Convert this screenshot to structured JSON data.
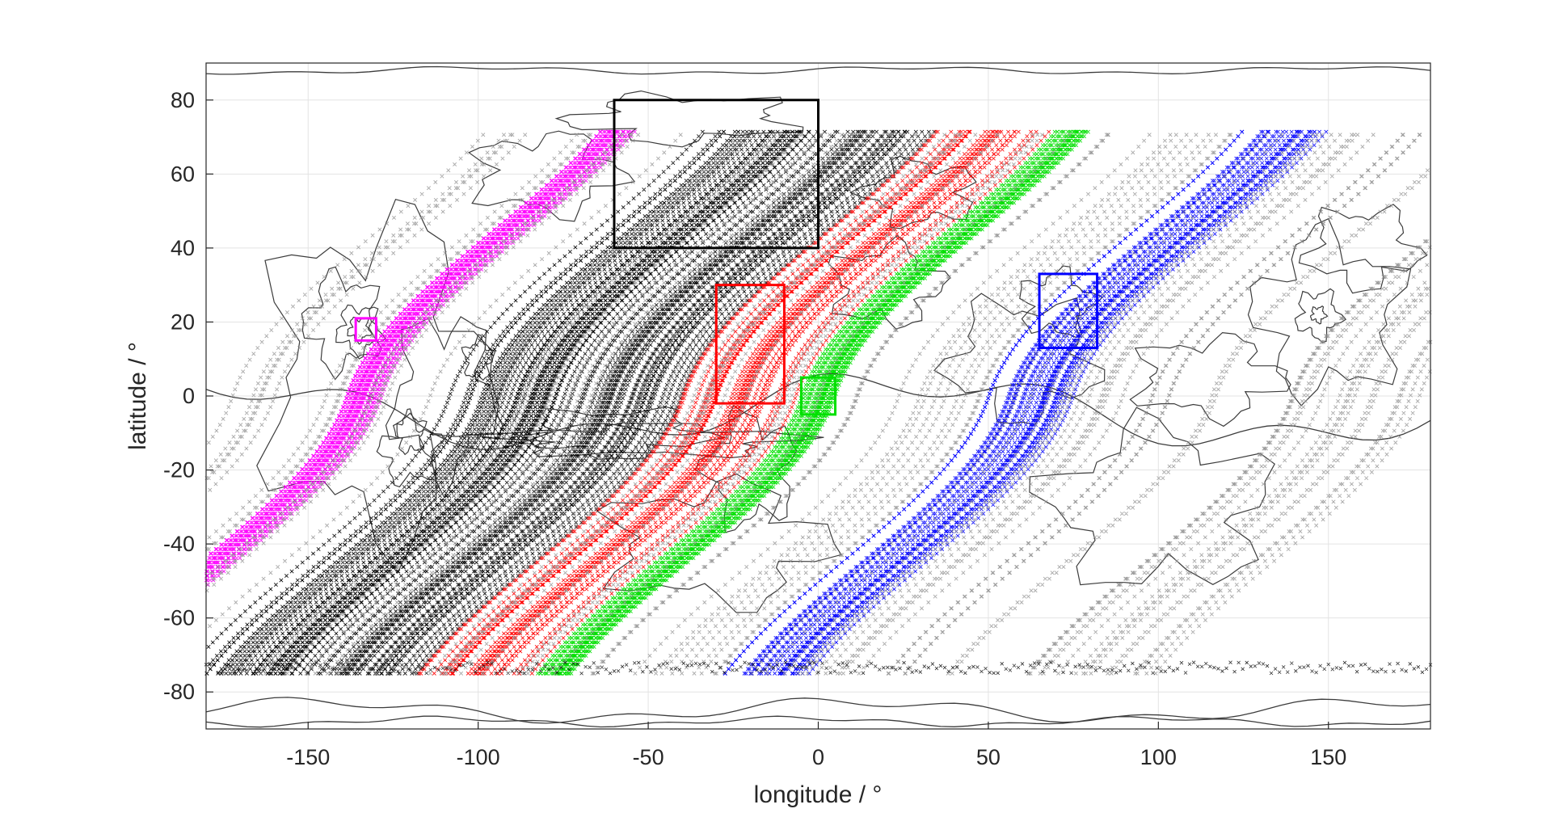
{
  "chart_data": {
    "type": "scatter",
    "title": "",
    "xlabel": "longitude / °",
    "ylabel": "latitude / °",
    "xlim": [
      -180,
      180
    ],
    "ylim": [
      -90,
      90
    ],
    "grid": true,
    "x_ticks": [
      -150,
      -100,
      -50,
      0,
      50,
      100,
      150
    ],
    "y_ticks": [
      80,
      60,
      40,
      20,
      0,
      -20,
      -40,
      -60,
      -80
    ],
    "colors": {
      "gray": "#8c8c8c",
      "black": "#000000",
      "red": "#ff0000",
      "green": "#00e000",
      "blue": "#0000ff",
      "magenta": "#ff00ff",
      "contour": "#3c3c3c"
    },
    "regions": [
      {
        "color": "black",
        "lon": [
          -60,
          0
        ],
        "lat": [
          40,
          80
        ]
      },
      {
        "color": "red",
        "lon": [
          -30,
          -10
        ],
        "lat": [
          -2,
          30
        ]
      },
      {
        "color": "green",
        "lon": [
          -5,
          5
        ],
        "lat": [
          -5,
          5
        ]
      },
      {
        "color": "blue",
        "lon": [
          65,
          82
        ],
        "lat": [
          13,
          33
        ]
      },
      {
        "color": "magenta",
        "lon": [
          -136,
          -130
        ],
        "lat": [
          15,
          21
        ]
      }
    ],
    "series": [
      {
        "color": "black",
        "lon_range_at_equator": [
          -110,
          -40
        ]
      },
      {
        "color": "red",
        "lon_range_at_equator": [
          -40,
          -5
        ]
      },
      {
        "color": "green",
        "lon_range_at_equator": [
          -5,
          5
        ]
      },
      {
        "color": "blue",
        "lon_range_at_equator": [
          50,
          75
        ]
      },
      {
        "color": "magenta",
        "lon_range_at_equator": [
          -140,
          -128
        ]
      },
      {
        "color": "gray",
        "lon_range_at_equator": [
          -175,
          180
        ]
      }
    ],
    "track_lat_range": [
      -75,
      72
    ]
  }
}
